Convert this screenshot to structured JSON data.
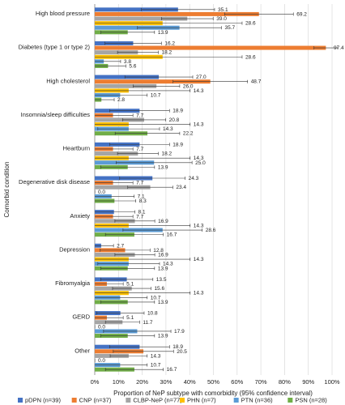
{
  "chart_data": {
    "type": "grouped-hbar-errorbar",
    "xlabel": "Proportion of NeP subtype with comorbidity (95% confidence interval)",
    "ylabel": "Comorbid condition",
    "categories": [
      "High blood pressure",
      "Diabetes (type 1 or type 2)",
      "High cholesterol",
      "Insomnia/sleep difficulties",
      "Heartburn",
      "Degenerative disk disease",
      "Anxiety",
      "Depression",
      "Fibromyalgia",
      "GERD",
      "Other"
    ],
    "xlim": [
      0,
      100
    ],
    "xticks": [
      {
        "value": 0,
        "label": "0%"
      },
      {
        "value": 10,
        "label": "10%"
      },
      {
        "value": 20,
        "label": "20%"
      },
      {
        "value": 30,
        "label": "30%"
      },
      {
        "value": 40,
        "label": "40%"
      },
      {
        "value": 50,
        "label": "50%"
      },
      {
        "value": 60,
        "label": "60%"
      },
      {
        "value": 70,
        "label": "70%"
      },
      {
        "value": 80,
        "label": "80%"
      },
      {
        "value": 90,
        "label": "90%"
      },
      {
        "value": 100,
        "label": "100%"
      }
    ],
    "grid": true,
    "legend": "bottom",
    "series": [
      {
        "name": "pDPN (n=39)",
        "color": "#4472c4",
        "values": [
          35.1,
          16.2,
          27,
          18.9,
          18.9,
          24.3,
          8.1,
          2.7,
          13.5,
          10.8,
          18.9
        ],
        "value_labels": [
          "35.1",
          "16.2",
          "27.0",
          "18.9",
          "18.9",
          "24.3",
          "8.1",
          "2.7",
          "13.5",
          "10.8",
          "18.9"
        ],
        "errors": [
          15.4,
          11.9,
          14.3,
          12.6,
          12.6,
          13.8,
          8.8,
          5.2,
          11,
          10,
          12.6
        ]
      },
      {
        "name": "CNP (n=37)",
        "color": "#ed7d31",
        "values": [
          69.2,
          97.4,
          48.7,
          7.7,
          7.7,
          7.7,
          7.7,
          12.8,
          5.1,
          5.1,
          20.5
        ],
        "value_labels": [
          "69.2",
          "97.4",
          "48.7",
          "7.7",
          "7.7",
          "7.7",
          "7.7",
          "12.8",
          "5.1",
          "5.1",
          "20.5"
        ],
        "errors": [
          14.5,
          5,
          15.7,
          8.4,
          8.4,
          8.4,
          8.4,
          10.5,
          6.9,
          6.9,
          12.7
        ]
      },
      {
        "name": "CLBP-NeP (n=77)",
        "color": "#a5a5a5",
        "values": [
          39,
          18.2,
          26,
          20.8,
          18.2,
          23.4,
          16.9,
          16.9,
          15.6,
          11.7,
          14.3
        ],
        "value_labels": [
          "39.0",
          "18.2",
          "26.0",
          "20.8",
          "18.2",
          "23.4",
          "16.9",
          "16.9",
          "15.6",
          "11.7",
          "14.3"
        ],
        "errors": [
          10.9,
          8.6,
          9.8,
          9.1,
          8.6,
          9.5,
          8.4,
          8.4,
          8.1,
          7.2,
          7.8
        ]
      },
      {
        "name": "PHN (n=7)",
        "color": "#ffc000",
        "values": [
          28.6,
          28.6,
          14.3,
          14.3,
          14.3,
          0,
          14.3,
          14.3,
          14.3,
          0,
          0
        ],
        "value_labels": [
          "28.6",
          "28.6",
          "14.3",
          "14.3",
          "14.3",
          "0.0",
          "14.3",
          "14.3",
          "14.3",
          "0.0",
          "0.0"
        ],
        "errors": [
          33.5,
          33.5,
          25.9,
          25.9,
          25.9,
          0,
          25.9,
          25.9,
          25.9,
          0,
          0
        ]
      },
      {
        "name": "PTN (n=36)",
        "color": "#5b9bd5",
        "values": [
          35.7,
          3.8,
          10.7,
          14.3,
          25,
          7.1,
          28.6,
          14.3,
          10.7,
          17.9,
          10.7
        ],
        "value_labels": [
          "35.7",
          "3.8",
          "10.7",
          "14.3",
          "25.0",
          "7.1",
          "28.6",
          "14.3",
          "10.7",
          "17.9",
          "10.7"
        ],
        "errors": [
          17.7,
          7.1,
          11.4,
          13,
          16,
          9.5,
          16.7,
          13,
          11.4,
          14.2,
          11.4
        ]
      },
      {
        "name": "PSN (n=28)",
        "color": "#70ad47",
        "values": [
          13.9,
          5.6,
          2.8,
          22.2,
          13.9,
          8.3,
          16.7,
          13.9,
          13.9,
          13.9,
          16.7
        ],
        "value_labels": [
          "13.9",
          "5.6",
          "2.8",
          "22.2",
          "13.9",
          "8.3",
          "16.7",
          "13.9",
          "13.9",
          "13.9",
          "16.7"
        ],
        "errors": [
          11.3,
          7.5,
          5.4,
          13.6,
          11.3,
          9,
          12.2,
          11.3,
          11.3,
          11.3,
          12.2
        ]
      }
    ]
  }
}
